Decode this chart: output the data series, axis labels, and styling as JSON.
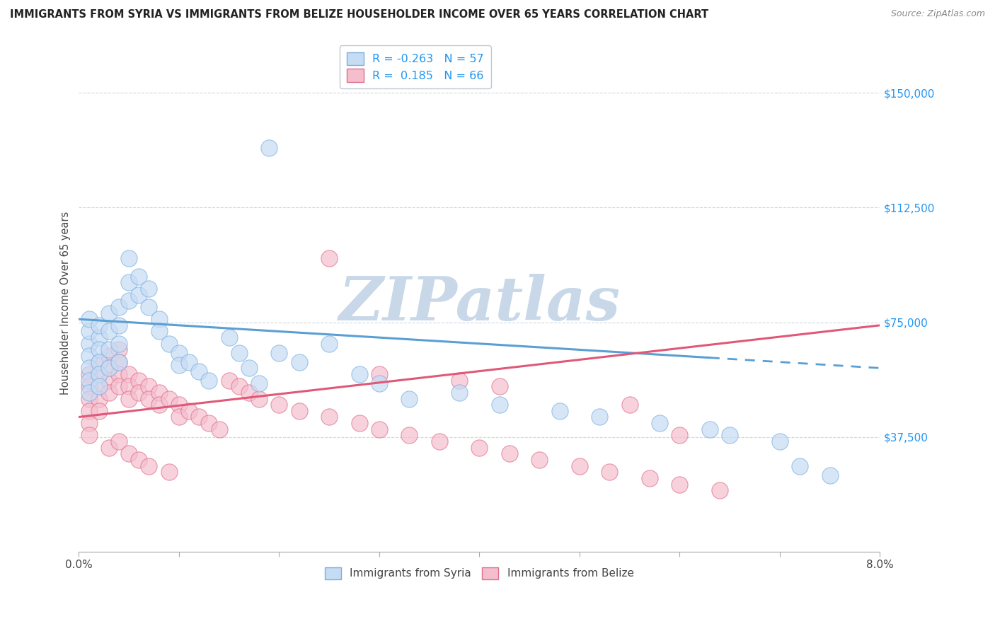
{
  "title": "IMMIGRANTS FROM SYRIA VS IMMIGRANTS FROM BELIZE HOUSEHOLDER INCOME OVER 65 YEARS CORRELATION CHART",
  "source": "Source: ZipAtlas.com",
  "ylabel": "Householder Income Over 65 years",
  "xlim": [
    0.0,
    0.08
  ],
  "ylim": [
    0,
    162500
  ],
  "yticks": [
    0,
    37500,
    75000,
    112500,
    150000
  ],
  "ytick_labels": [
    "",
    "$37,500",
    "$75,000",
    "$112,500",
    "$150,000"
  ],
  "R_syria": -0.263,
  "N_syria": 57,
  "R_belize": 0.185,
  "N_belize": 66,
  "color_syria_fill": "#c6dcf5",
  "color_syria_edge": "#7ab0e0",
  "color_belize_fill": "#f5bece",
  "color_belize_edge": "#e0708a",
  "line_color_syria": "#5a9fd4",
  "line_color_belize": "#e05878",
  "watermark_text": "ZIPatlas",
  "watermark_color": "#c8d8e8",
  "trend_syria_x0": 0.0,
  "trend_syria_y0": 76000,
  "trend_syria_x1": 0.08,
  "trend_syria_y1": 60000,
  "trend_belize_x0": 0.0,
  "trend_belize_y0": 44000,
  "trend_belize_x1": 0.08,
  "trend_belize_y1": 74000,
  "trend_syria_solid_end": 0.063,
  "syria_scatter_x": [
    0.001,
    0.001,
    0.001,
    0.001,
    0.001,
    0.001,
    0.001,
    0.002,
    0.002,
    0.002,
    0.002,
    0.002,
    0.002,
    0.003,
    0.003,
    0.003,
    0.003,
    0.004,
    0.004,
    0.004,
    0.004,
    0.005,
    0.005,
    0.005,
    0.006,
    0.006,
    0.007,
    0.007,
    0.008,
    0.008,
    0.009,
    0.01,
    0.01,
    0.011,
    0.012,
    0.013,
    0.015,
    0.016,
    0.017,
    0.018,
    0.02,
    0.022,
    0.025,
    0.028,
    0.03,
    0.033,
    0.038,
    0.042,
    0.048,
    0.052,
    0.058,
    0.063,
    0.065,
    0.07,
    0.072,
    0.075,
    0.019
  ],
  "syria_scatter_y": [
    68000,
    72000,
    76000,
    64000,
    60000,
    56000,
    52000,
    70000,
    74000,
    66000,
    62000,
    58000,
    54000,
    78000,
    72000,
    66000,
    60000,
    80000,
    74000,
    68000,
    62000,
    96000,
    88000,
    82000,
    90000,
    84000,
    86000,
    80000,
    76000,
    72000,
    68000,
    65000,
    61000,
    62000,
    59000,
    56000,
    70000,
    65000,
    60000,
    55000,
    65000,
    62000,
    68000,
    58000,
    55000,
    50000,
    52000,
    48000,
    46000,
    44000,
    42000,
    40000,
    38000,
    36000,
    28000,
    25000,
    132000
  ],
  "belize_scatter_x": [
    0.001,
    0.001,
    0.001,
    0.001,
    0.001,
    0.001,
    0.002,
    0.002,
    0.002,
    0.002,
    0.002,
    0.003,
    0.003,
    0.003,
    0.003,
    0.003,
    0.004,
    0.004,
    0.004,
    0.004,
    0.004,
    0.005,
    0.005,
    0.005,
    0.005,
    0.006,
    0.006,
    0.006,
    0.007,
    0.007,
    0.007,
    0.008,
    0.008,
    0.009,
    0.009,
    0.01,
    0.01,
    0.011,
    0.012,
    0.013,
    0.014,
    0.015,
    0.016,
    0.017,
    0.018,
    0.02,
    0.022,
    0.025,
    0.028,
    0.03,
    0.033,
    0.036,
    0.04,
    0.043,
    0.046,
    0.05,
    0.053,
    0.057,
    0.06,
    0.064,
    0.025,
    0.03,
    0.038,
    0.042,
    0.055,
    0.06
  ],
  "belize_scatter_y": [
    58000,
    54000,
    50000,
    46000,
    42000,
    38000,
    62000,
    58000,
    54000,
    50000,
    46000,
    64000,
    60000,
    56000,
    52000,
    34000,
    66000,
    62000,
    58000,
    54000,
    36000,
    58000,
    54000,
    50000,
    32000,
    56000,
    52000,
    30000,
    54000,
    50000,
    28000,
    52000,
    48000,
    50000,
    26000,
    48000,
    44000,
    46000,
    44000,
    42000,
    40000,
    56000,
    54000,
    52000,
    50000,
    48000,
    46000,
    44000,
    42000,
    40000,
    38000,
    36000,
    34000,
    32000,
    30000,
    28000,
    26000,
    24000,
    22000,
    20000,
    96000,
    58000,
    56000,
    54000,
    48000,
    38000
  ]
}
